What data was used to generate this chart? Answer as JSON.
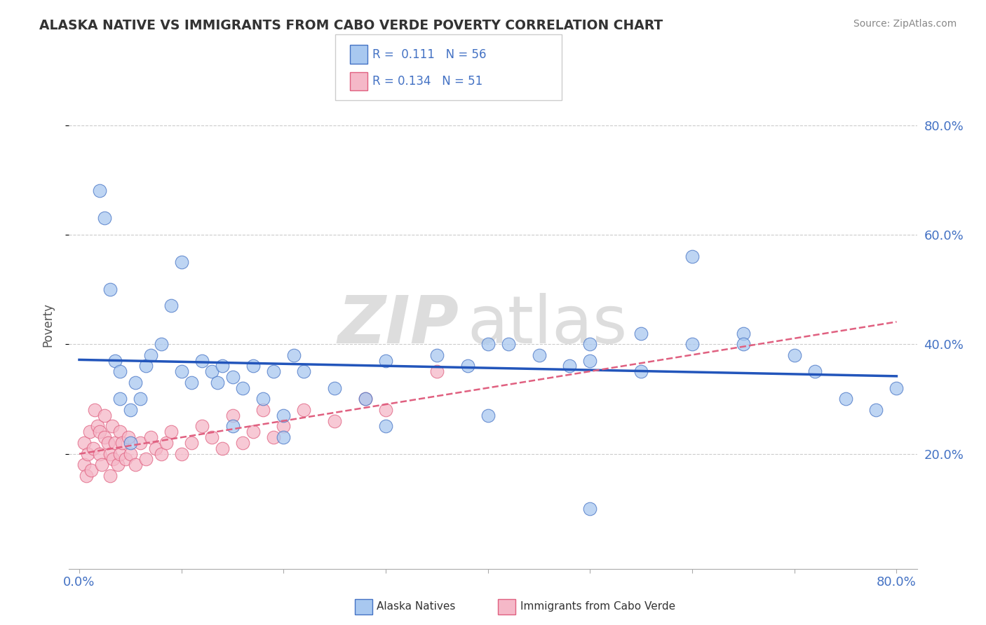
{
  "title": "ALASKA NATIVE VS IMMIGRANTS FROM CABO VERDE POVERTY CORRELATION CHART",
  "source": "Source: ZipAtlas.com",
  "ylabel": "Poverty",
  "y_tick_labels": [
    "20.0%",
    "40.0%",
    "60.0%",
    "80.0%"
  ],
  "y_tick_positions": [
    0.2,
    0.4,
    0.6,
    0.8
  ],
  "x_tick_positions": [
    0.0,
    0.1,
    0.2,
    0.3,
    0.4,
    0.5,
    0.6,
    0.7,
    0.8
  ],
  "xlim": [
    -0.01,
    0.82
  ],
  "ylim": [
    -0.01,
    0.88
  ],
  "alaska_R": "0.111",
  "alaska_N": "56",
  "caboverde_R": "0.134",
  "caboverde_N": "51",
  "alaska_color": "#a8c8f0",
  "alaska_edge_color": "#4472c4",
  "caboverde_color": "#f5b8c8",
  "caboverde_edge_color": "#e06080",
  "alaska_line_color": "#2255bb",
  "caboverde_line_color": "#e06080",
  "watermark_zip": "ZIP",
  "watermark_atlas": "atlas",
  "alaska_scatter_x": [
    0.02,
    0.025,
    0.03,
    0.035,
    0.04,
    0.04,
    0.05,
    0.055,
    0.06,
    0.065,
    0.07,
    0.08,
    0.09,
    0.1,
    0.1,
    0.11,
    0.12,
    0.13,
    0.135,
    0.14,
    0.15,
    0.16,
    0.17,
    0.18,
    0.19,
    0.2,
    0.21,
    0.22,
    0.25,
    0.28,
    0.3,
    0.35,
    0.38,
    0.4,
    0.42,
    0.45,
    0.48,
    0.5,
    0.5,
    0.55,
    0.55,
    0.6,
    0.65,
    0.65,
    0.7,
    0.72,
    0.75,
    0.78,
    0.8,
    0.05,
    0.15,
    0.2,
    0.3,
    0.4,
    0.5,
    0.6
  ],
  "alaska_scatter_y": [
    0.68,
    0.63,
    0.5,
    0.37,
    0.35,
    0.3,
    0.28,
    0.33,
    0.3,
    0.36,
    0.38,
    0.4,
    0.47,
    0.55,
    0.35,
    0.33,
    0.37,
    0.35,
    0.33,
    0.36,
    0.34,
    0.32,
    0.36,
    0.3,
    0.35,
    0.27,
    0.38,
    0.35,
    0.32,
    0.3,
    0.37,
    0.38,
    0.36,
    0.4,
    0.4,
    0.38,
    0.36,
    0.4,
    0.37,
    0.35,
    0.42,
    0.4,
    0.42,
    0.4,
    0.38,
    0.35,
    0.3,
    0.28,
    0.32,
    0.22,
    0.25,
    0.23,
    0.25,
    0.27,
    0.1,
    0.56
  ],
  "caboverde_scatter_x": [
    0.005,
    0.005,
    0.007,
    0.008,
    0.01,
    0.012,
    0.014,
    0.015,
    0.018,
    0.02,
    0.02,
    0.022,
    0.025,
    0.025,
    0.028,
    0.03,
    0.03,
    0.032,
    0.033,
    0.035,
    0.038,
    0.04,
    0.04,
    0.042,
    0.045,
    0.048,
    0.05,
    0.055,
    0.06,
    0.065,
    0.07,
    0.075,
    0.08,
    0.085,
    0.09,
    0.1,
    0.11,
    0.12,
    0.13,
    0.14,
    0.15,
    0.16,
    0.17,
    0.18,
    0.19,
    0.2,
    0.22,
    0.25,
    0.28,
    0.3,
    0.35
  ],
  "caboverde_scatter_y": [
    0.18,
    0.22,
    0.16,
    0.2,
    0.24,
    0.17,
    0.21,
    0.28,
    0.25,
    0.2,
    0.24,
    0.18,
    0.23,
    0.27,
    0.22,
    0.2,
    0.16,
    0.25,
    0.19,
    0.22,
    0.18,
    0.2,
    0.24,
    0.22,
    0.19,
    0.23,
    0.2,
    0.18,
    0.22,
    0.19,
    0.23,
    0.21,
    0.2,
    0.22,
    0.24,
    0.2,
    0.22,
    0.25,
    0.23,
    0.21,
    0.27,
    0.22,
    0.24,
    0.28,
    0.23,
    0.25,
    0.28,
    0.26,
    0.3,
    0.28,
    0.35
  ]
}
